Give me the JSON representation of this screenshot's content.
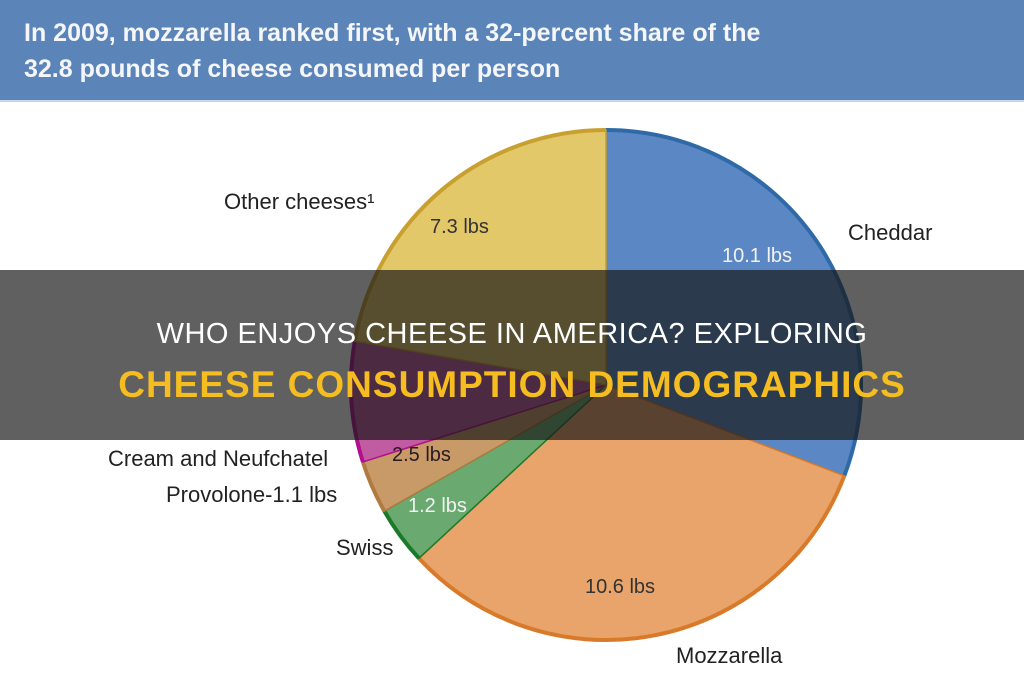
{
  "header": {
    "line1": "In 2009, mozzarella ranked first, with a 32-percent share of the",
    "line2": "32.8 pounds of cheese consumed per person"
  },
  "chart_data": {
    "type": "pie",
    "total_label": "32.8 pounds",
    "slices": [
      {
        "name": "Cheddar",
        "value": 10.1,
        "label": "10.1 lbs",
        "color": "#5b88c4",
        "edge": "#2f6aa8"
      },
      {
        "name": "Mozzarella",
        "value": 10.6,
        "label": "10.6 lbs",
        "color": "#e8a46a",
        "edge": "#d97a2a"
      },
      {
        "name": "Swiss",
        "value": 1.2,
        "label": "1.2 lbs",
        "color": "#6aaa70",
        "edge": "#1a7a2a"
      },
      {
        "name": "Provolone",
        "value": 1.1,
        "label": "Provolone-1.1 lbs",
        "color": "#c89a68",
        "edge": "#b07a40"
      },
      {
        "name": "Cream and Neufchatel",
        "value": 2.5,
        "label": "2.5 lbs",
        "color": "#c25ca2",
        "edge": "#b01090"
      },
      {
        "name": "Other cheeses¹",
        "value": 7.3,
        "label": "7.3 lbs",
        "color": "#e3c86a",
        "edge": "#c8a030"
      }
    ]
  },
  "overlay": {
    "title_line1": "WHO ENJOYS CHEESE IN AMERICA? EXPLORING",
    "title_line2": "CHEESE CONSUMPTION DEMOGRAPHICS"
  }
}
